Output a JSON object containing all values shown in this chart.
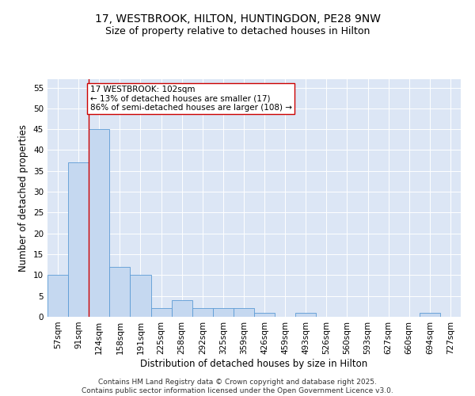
{
  "title_line1": "17, WESTBROOK, HILTON, HUNTINGDON, PE28 9NW",
  "title_line2": "Size of property relative to detached houses in Hilton",
  "categories": [
    "57sqm",
    "91sqm",
    "124sqm",
    "158sqm",
    "191sqm",
    "225sqm",
    "258sqm",
    "292sqm",
    "325sqm",
    "359sqm",
    "426sqm",
    "459sqm",
    "493sqm",
    "526sqm",
    "560sqm",
    "593sqm",
    "627sqm",
    "660sqm",
    "694sqm",
    "727sqm"
  ],
  "values": [
    10,
    37,
    45,
    12,
    10,
    2,
    4,
    2,
    2,
    2,
    1,
    0,
    1,
    0,
    0,
    0,
    0,
    0,
    1,
    0
  ],
  "bar_color": "#c5d8f0",
  "bar_edge_color": "#5b9bd5",
  "vline_x": 1.5,
  "vline_color": "#cc0000",
  "annotation_text": "17 WESTBROOK: 102sqm\n← 13% of detached houses are smaller (17)\n86% of semi-detached houses are larger (108) →",
  "annotation_box_color": "#ffffff",
  "annotation_box_edge": "#cc0000",
  "xlabel": "Distribution of detached houses by size in Hilton",
  "ylabel": "Number of detached properties",
  "ylim": [
    0,
    57
  ],
  "yticks": [
    0,
    5,
    10,
    15,
    20,
    25,
    30,
    35,
    40,
    45,
    50,
    55
  ],
  "background_color": "#dce6f5",
  "footer_line1": "Contains HM Land Registry data © Crown copyright and database right 2025.",
  "footer_line2": "Contains public sector information licensed under the Open Government Licence v3.0.",
  "title_fontsize": 10,
  "subtitle_fontsize": 9,
  "axis_label_fontsize": 8.5,
  "tick_fontsize": 7.5,
  "annotation_fontsize": 7.5,
  "footer_fontsize": 6.5
}
